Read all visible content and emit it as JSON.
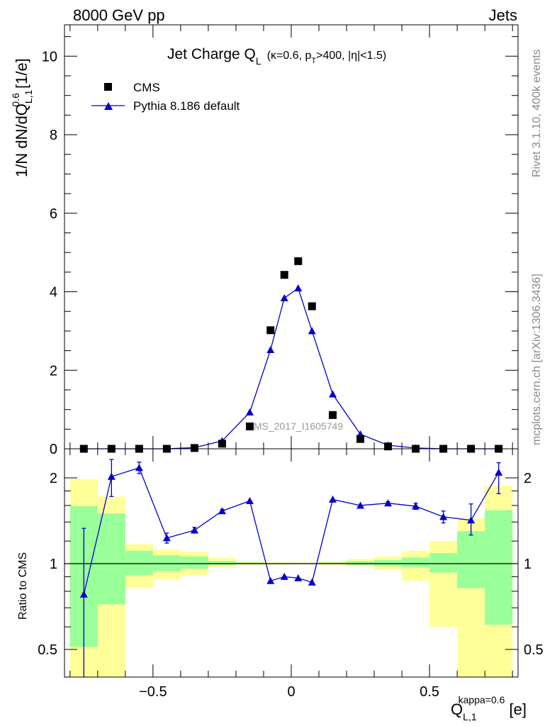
{
  "header": {
    "left": "8000 GeV pp",
    "right": "Jets",
    "rivet": "Rivet 3.1.10,  400k events",
    "mcplots": "mcplots.cern.ch [arXiv:1306.3436]"
  },
  "watermark": "CMS_2017_I1605749",
  "colors": {
    "mc": "#0000cc",
    "data": "#000000",
    "band_inner": "#99ff99",
    "band_outer": "#ffff99"
  },
  "chart_data": [
    {
      "type": "scatter",
      "title": "Jet Charge Q",
      "title_sub": "L",
      "title_params": "(κ=0.6, p",
      "title_params_sub": "T",
      "title_params_rest": ">400, |η|<1.5)",
      "ylabel": "1/N dN/dQ",
      "ylabel_sup": "0.6",
      "ylabel_sub": "L,1",
      "ylabel_unit": " [1/e]",
      "xlim": [
        -0.82,
        0.82
      ],
      "ylim": [
        0,
        10.8
      ],
      "yticks": [
        "0",
        "2",
        "4",
        "6",
        "8",
        "10"
      ],
      "ytick_values": [
        0,
        2,
        4,
        6,
        8,
        10
      ],
      "legend_position": "top-left",
      "series": [
        {
          "name": "CMS",
          "style": "markers",
          "x": [
            -0.75,
            -0.65,
            -0.55,
            -0.45,
            -0.35,
            -0.25,
            -0.15,
            -0.075,
            -0.025,
            0.025,
            0.075,
            0.15,
            0.25,
            0.35,
            0.45,
            0.55,
            0.65,
            0.75
          ],
          "y": [
            0.0,
            0.0,
            0.0,
            0.0,
            0.02,
            0.13,
            0.57,
            3.02,
            4.43,
            4.78,
            3.63,
            0.86,
            0.25,
            0.06,
            0.0,
            0.0,
            0.0,
            0.0
          ]
        },
        {
          "name": "Pythia 8.186 default",
          "style": "line-triangles",
          "x": [
            -0.75,
            -0.65,
            -0.55,
            -0.45,
            -0.35,
            -0.25,
            -0.15,
            -0.075,
            -0.025,
            0.025,
            0.075,
            0.15,
            0.25,
            0.35,
            0.45,
            0.55,
            0.65,
            0.75
          ],
          "y": [
            0.0,
            0.0,
            0.0,
            0.0,
            0.03,
            0.2,
            0.93,
            2.52,
            3.84,
            4.09,
            3.0,
            1.39,
            0.37,
            0.09,
            0.02,
            0.0,
            0.0,
            0.0
          ]
        }
      ]
    },
    {
      "type": "line",
      "ylabel": "Ratio to CMS",
      "xlabel": "Q",
      "xlabel_sub": "L,1",
      "xlabel_sup": "kappa=0.6",
      "xlabel_unit": " [e]",
      "xlim": [
        -0.82,
        0.82
      ],
      "ylim": [
        0.35,
        2.25
      ],
      "xticks": [
        "−0.5",
        "0",
        "0.5"
      ],
      "xtick_values": [
        -0.5,
        0,
        0.5
      ],
      "yticks": [
        "0.5",
        "1",
        "2"
      ],
      "ytick_values": [
        0.5,
        1,
        2
      ],
      "reference_line": 1,
      "bands": {
        "edges": [
          -0.8,
          -0.7,
          -0.6,
          -0.5,
          -0.4,
          -0.3,
          -0.2,
          -0.1,
          0.0,
          0.1,
          0.2,
          0.3,
          0.4,
          0.5,
          0.6,
          0.7,
          0.8
        ],
        "inner_lo": [
          0.51,
          0.72,
          0.91,
          0.94,
          0.96,
          0.99,
          0.995,
          0.997,
          0.998,
          0.997,
          0.99,
          0.98,
          0.97,
          0.93,
          0.82,
          0.61
        ],
        "inner_hi": [
          1.59,
          1.5,
          1.11,
          1.07,
          1.06,
          1.02,
          1.01,
          1.005,
          1.005,
          1.01,
          1.02,
          1.03,
          1.05,
          1.09,
          1.3,
          1.54
        ],
        "outer_lo": [
          0.35,
          0.35,
          0.82,
          0.88,
          0.91,
          0.97,
          0.99,
          0.993,
          0.995,
          0.99,
          0.98,
          0.95,
          0.87,
          0.6,
          0.35,
          0.35
        ],
        "outer_hi": [
          1.98,
          1.72,
          1.17,
          1.12,
          1.1,
          1.05,
          1.02,
          1.01,
          1.01,
          1.02,
          1.04,
          1.06,
          1.11,
          1.2,
          1.44,
          1.88
        ]
      },
      "series": [
        {
          "name": "Pythia 8.186 default",
          "x": [
            -0.75,
            -0.65,
            -0.55,
            -0.45,
            -0.35,
            -0.25,
            -0.15,
            -0.075,
            -0.025,
            0.025,
            0.075,
            0.15,
            0.25,
            0.35,
            0.45,
            0.55,
            0.65,
            0.75
          ],
          "y": [
            0.78,
            2.02,
            2.17,
            1.23,
            1.31,
            1.53,
            1.66,
            0.87,
            0.9,
            0.89,
            0.86,
            1.68,
            1.6,
            1.63,
            1.59,
            1.46,
            1.42,
            2.09
          ],
          "err_lo": [
            0.45,
            0.3,
            0.1,
            0.05,
            0.03,
            0.02,
            0.0,
            0.0,
            0.0,
            0.0,
            0.0,
            0.0,
            0.0,
            0.02,
            0.04,
            0.07,
            0.16,
            0.33
          ],
          "err_hi": [
            0.55,
            0.3,
            0.1,
            0.05,
            0.03,
            0.02,
            0.0,
            0.0,
            0.0,
            0.0,
            0.0,
            0.0,
            0.0,
            0.02,
            0.04,
            0.07,
            0.2,
            0.17
          ]
        }
      ]
    }
  ]
}
